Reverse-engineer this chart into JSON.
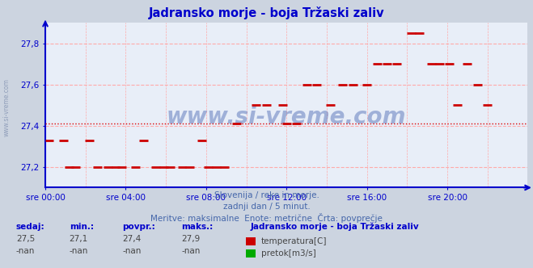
{
  "title": "Jadransko morje - boja Tržaski zaliv",
  "title_color": "#0000cc",
  "bg_color": "#ccd4e0",
  "plot_bg_color": "#e8eef8",
  "grid_color": "#ffaaaa",
  "axis_color": "#0000cc",
  "watermark": "www.si-vreme.com",
  "ylim": [
    27.1,
    27.9
  ],
  "yticks": [
    27.2,
    27.4,
    27.6,
    27.8
  ],
  "xlim_hours": [
    0,
    24
  ],
  "xtick_hours": [
    0,
    4,
    8,
    12,
    16,
    20
  ],
  "xtick_labels": [
    "sre 00:00",
    "sre 04:00",
    "sre 08:00",
    "sre 12:00",
    "sre 16:00",
    "sre 20:00"
  ],
  "avg_value": 27.41,
  "avg_color": "#dd0000",
  "data_color": "#cc0000",
  "subtitle1": "Slovenija / reke in morje.",
  "subtitle2": "zadnji dan / 5 minut.",
  "subtitle3": "Meritve: maksimalne  Enote: metrične  Črta: povprečje",
  "subtitle_color": "#4466aa",
  "footer_label_color": "#0000cc",
  "footer_value_color": "#444444",
  "sedaj": "27,5",
  "min_val": "27,1",
  "povpr": "27,4",
  "maks": "27,9",
  "station_name": "Jadransko morje - boja Tržaski zaliv",
  "legend_temp": "temperatura[C]",
  "legend_pretok": "pretok[m3/s]",
  "temp_color": "#cc0000",
  "pretok_color": "#00aa00",
  "data_points": [
    [
      0.2,
      27.33
    ],
    [
      0.9,
      27.33
    ],
    [
      1.2,
      27.2
    ],
    [
      1.5,
      27.2
    ],
    [
      2.2,
      27.33
    ],
    [
      2.6,
      27.2
    ],
    [
      3.1,
      27.2
    ],
    [
      3.5,
      27.2
    ],
    [
      3.8,
      27.2
    ],
    [
      4.5,
      27.2
    ],
    [
      4.9,
      27.33
    ],
    [
      5.5,
      27.2
    ],
    [
      5.9,
      27.2
    ],
    [
      6.2,
      27.2
    ],
    [
      6.8,
      27.2
    ],
    [
      7.2,
      27.2
    ],
    [
      7.8,
      27.33
    ],
    [
      8.1,
      27.2
    ],
    [
      8.5,
      27.2
    ],
    [
      8.9,
      27.2
    ],
    [
      9.5,
      27.41
    ],
    [
      10.5,
      27.5
    ],
    [
      11.0,
      27.5
    ],
    [
      11.8,
      27.5
    ],
    [
      12.0,
      27.41
    ],
    [
      12.5,
      27.41
    ],
    [
      13.0,
      27.6
    ],
    [
      13.5,
      27.6
    ],
    [
      14.2,
      27.5
    ],
    [
      14.8,
      27.6
    ],
    [
      15.3,
      27.6
    ],
    [
      16.0,
      27.6
    ],
    [
      16.5,
      27.7
    ],
    [
      17.0,
      27.7
    ],
    [
      17.5,
      27.7
    ],
    [
      18.2,
      27.85
    ],
    [
      18.6,
      27.85
    ],
    [
      19.2,
      27.7
    ],
    [
      19.6,
      27.7
    ],
    [
      20.1,
      27.7
    ],
    [
      20.5,
      27.5
    ],
    [
      21.0,
      27.7
    ],
    [
      21.5,
      27.6
    ],
    [
      22.0,
      27.5
    ]
  ]
}
